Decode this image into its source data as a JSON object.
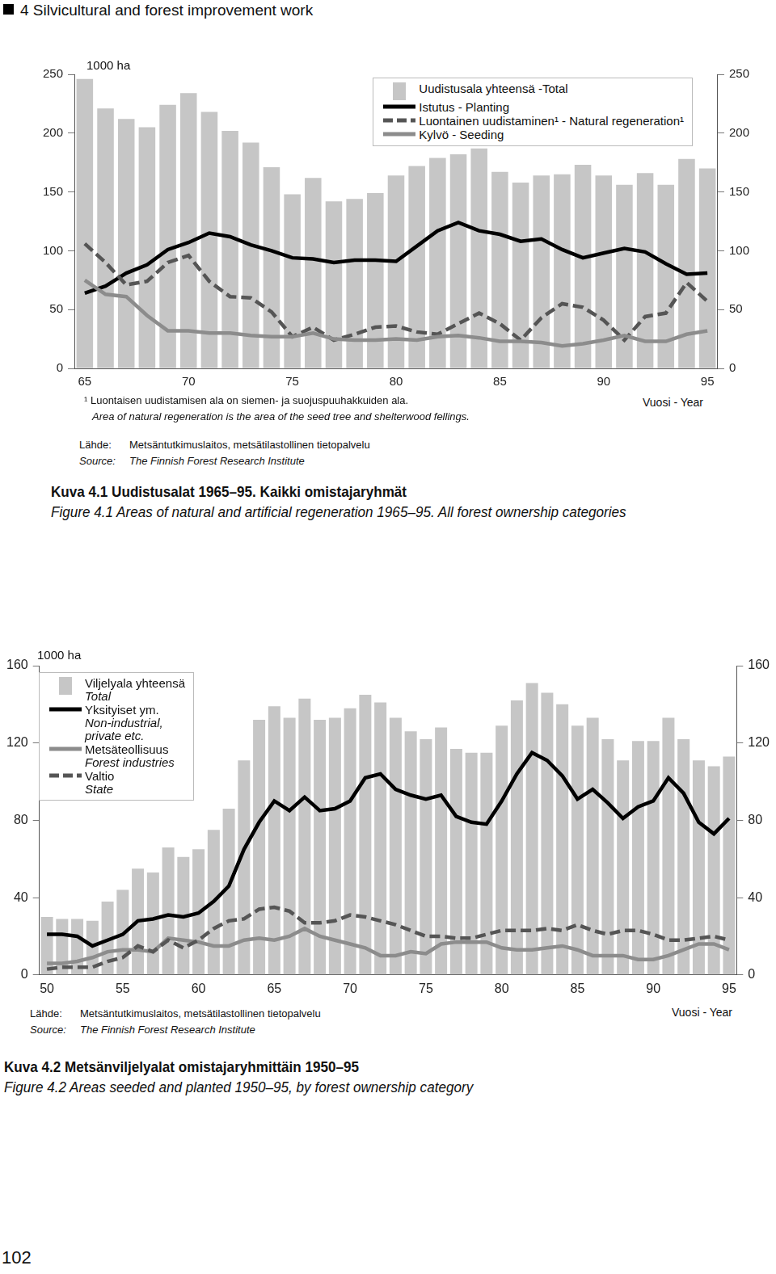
{
  "header": "4 Silvicultural and forest improvement work",
  "page_number": "102",
  "chart_data": [
    {
      "type": "bar",
      "title": "Kuva 4.1 Uudistusalat 1965–95. Kaikki omistajaryhmät",
      "subtitle": "Figure 4.1 Areas of natural and artificial regeneration 1965–95. All forest ownership categories",
      "y_label": "1000 ha",
      "x_label": "Vuosi - Year",
      "annotations": [
        "¹ Luontaisen uudistamisen ala on siemen- ja suojuspuuhakkuiden ala.",
        "Area of natural regeneration is the area of the seed tree and shelterwood fellings."
      ],
      "source": [
        {
          "label": "Lähde:",
          "text": "Metsäntutkimuslaitos, metsätilastollinen tietopalvelu"
        },
        {
          "label": "Source:",
          "text": "The Finnish Forest Research Institute"
        }
      ],
      "legend": "upper right",
      "grid": false,
      "categories": [
        "65",
        null,
        null,
        null,
        null,
        "70",
        null,
        null,
        null,
        null,
        "75",
        null,
        null,
        null,
        null,
        "80",
        null,
        null,
        null,
        null,
        "85",
        null,
        null,
        null,
        null,
        "90",
        null,
        null,
        null,
        null,
        "95"
      ],
      "ylim": [
        0,
        250
      ],
      "yticks": [
        0,
        50,
        100,
        150,
        200,
        250
      ],
      "series": [
        {
          "name": "Uudistusala yhteensä -Total",
          "type": "bar",
          "color": "#c6c6c6",
          "values": [
            246,
            221,
            212,
            205,
            224,
            234,
            218,
            202,
            192,
            171,
            148,
            162,
            142,
            144,
            149,
            164,
            172,
            179,
            182,
            187,
            167,
            158,
            164,
            165,
            173,
            164,
            156,
            166,
            156,
            178,
            170
          ]
        },
        {
          "name": "Istutus - Planting",
          "type": "line",
          "color": "#000000",
          "line_style": "solid",
          "values": [
            64,
            70,
            81,
            88,
            101,
            107,
            115,
            112,
            105,
            100,
            94,
            93,
            90,
            92,
            92,
            91,
            104,
            117,
            124,
            117,
            114,
            108,
            110,
            101,
            94,
            98,
            102,
            99,
            89,
            80,
            81
          ]
        },
        {
          "name": "Luontainen uudistaminen¹ - Natural regeneration¹",
          "type": "line",
          "color": "#555555",
          "line_style": "dashed",
          "values": [
            106,
            90,
            71,
            74,
            90,
            96,
            74,
            61,
            60,
            48,
            27,
            35,
            24,
            29,
            35,
            36,
            31,
            29,
            38,
            47,
            38,
            24,
            43,
            55,
            52,
            41,
            24,
            44,
            47,
            73,
            57
          ]
        },
        {
          "name": "Kylvö - Seeding",
          "type": "line",
          "color": "#8c8c8c",
          "line_style": "solid",
          "values": [
            75,
            63,
            61,
            45,
            32,
            32,
            30,
            30,
            28,
            27,
            27,
            30,
            25,
            24,
            24,
            25,
            24,
            27,
            28,
            26,
            23,
            23,
            22,
            19,
            21,
            24,
            28,
            23,
            23,
            29,
            32
          ]
        }
      ]
    },
    {
      "type": "bar",
      "title": "Kuva 4.2 Metsänviljelyalat omistajaryhmittäin 1950–95",
      "subtitle": "Figure 4.2 Areas seeded and planted 1950–95, by forest ownership category",
      "y_label": "1000 ha",
      "x_label": "Vuosi - Year",
      "source": [
        {
          "label": "Lähde:",
          "text": "Metsäntutkimuslaitos, metsätilastollinen tietopalvelu"
        },
        {
          "label": "Source:",
          "text": "The Finnish Forest Research Institute"
        }
      ],
      "legend": "upper left",
      "grid": false,
      "categories": [
        "50",
        null,
        null,
        null,
        null,
        "55",
        null,
        null,
        null,
        null,
        "60",
        null,
        null,
        null,
        null,
        "65",
        null,
        null,
        null,
        null,
        "70",
        null,
        null,
        null,
        null,
        "75",
        null,
        null,
        null,
        null,
        "80",
        null,
        null,
        null,
        null,
        "85",
        null,
        null,
        null,
        null,
        "90",
        null,
        null,
        null,
        null,
        "95"
      ],
      "ylim": [
        0,
        160
      ],
      "yticks": [
        0,
        40,
        80,
        120,
        160
      ],
      "series": [
        {
          "name": "Viljelyala yhteensä\nTotal",
          "type": "bar",
          "color": "#c6c6c6",
          "values": [
            30,
            29,
            29,
            28,
            38,
            44,
            55,
            53,
            66,
            61,
            65,
            75,
            86,
            111,
            132,
            139,
            133,
            143,
            132,
            133,
            138,
            145,
            141,
            133,
            126,
            122,
            128,
            117,
            115,
            115,
            129,
            142,
            151,
            146,
            140,
            129,
            133,
            122,
            111,
            121,
            121,
            133,
            122,
            111,
            108,
            113
          ]
        },
        {
          "name": "Yksityiset ym.\nNon-industrial,\nprivate etc.",
          "type": "line",
          "color": "#000000",
          "line_style": "solid",
          "values": [
            21,
            21,
            20,
            15,
            18,
            21,
            28,
            29,
            31,
            30,
            32,
            38,
            46,
            65,
            79,
            90,
            85,
            92,
            85,
            86,
            90,
            102,
            104,
            96,
            93,
            91,
            93,
            82,
            79,
            78,
            90,
            104,
            115,
            111,
            103,
            91,
            96,
            89,
            81,
            87,
            90,
            102,
            94,
            79,
            73,
            81
          ]
        },
        {
          "name": "Metsäteollisuus\nForest industries",
          "type": "line",
          "color": "#8c8c8c",
          "line_style": "solid",
          "values": [
            6,
            6,
            7,
            9,
            12,
            13,
            13,
            12,
            19,
            18,
            17,
            15,
            15,
            18,
            19,
            18,
            20,
            24,
            20,
            18,
            16,
            14,
            10,
            10,
            12,
            11,
            16,
            17,
            17,
            17,
            14,
            13,
            13,
            14,
            15,
            13,
            10,
            10,
            10,
            8,
            8,
            10,
            13,
            16,
            16,
            13
          ]
        },
        {
          "name": "Valtio\nState",
          "type": "line",
          "color": "#555555",
          "line_style": "dashed",
          "values": [
            3,
            4,
            4,
            4,
            7,
            9,
            15,
            12,
            18,
            14,
            18,
            24,
            28,
            29,
            34,
            35,
            33,
            27,
            27,
            28,
            31,
            30,
            28,
            26,
            23,
            20,
            20,
            19,
            19,
            21,
            23,
            23,
            23,
            24,
            23,
            26,
            23,
            21,
            23,
            23,
            21,
            18,
            18,
            19,
            20,
            18
          ]
        }
      ]
    }
  ]
}
